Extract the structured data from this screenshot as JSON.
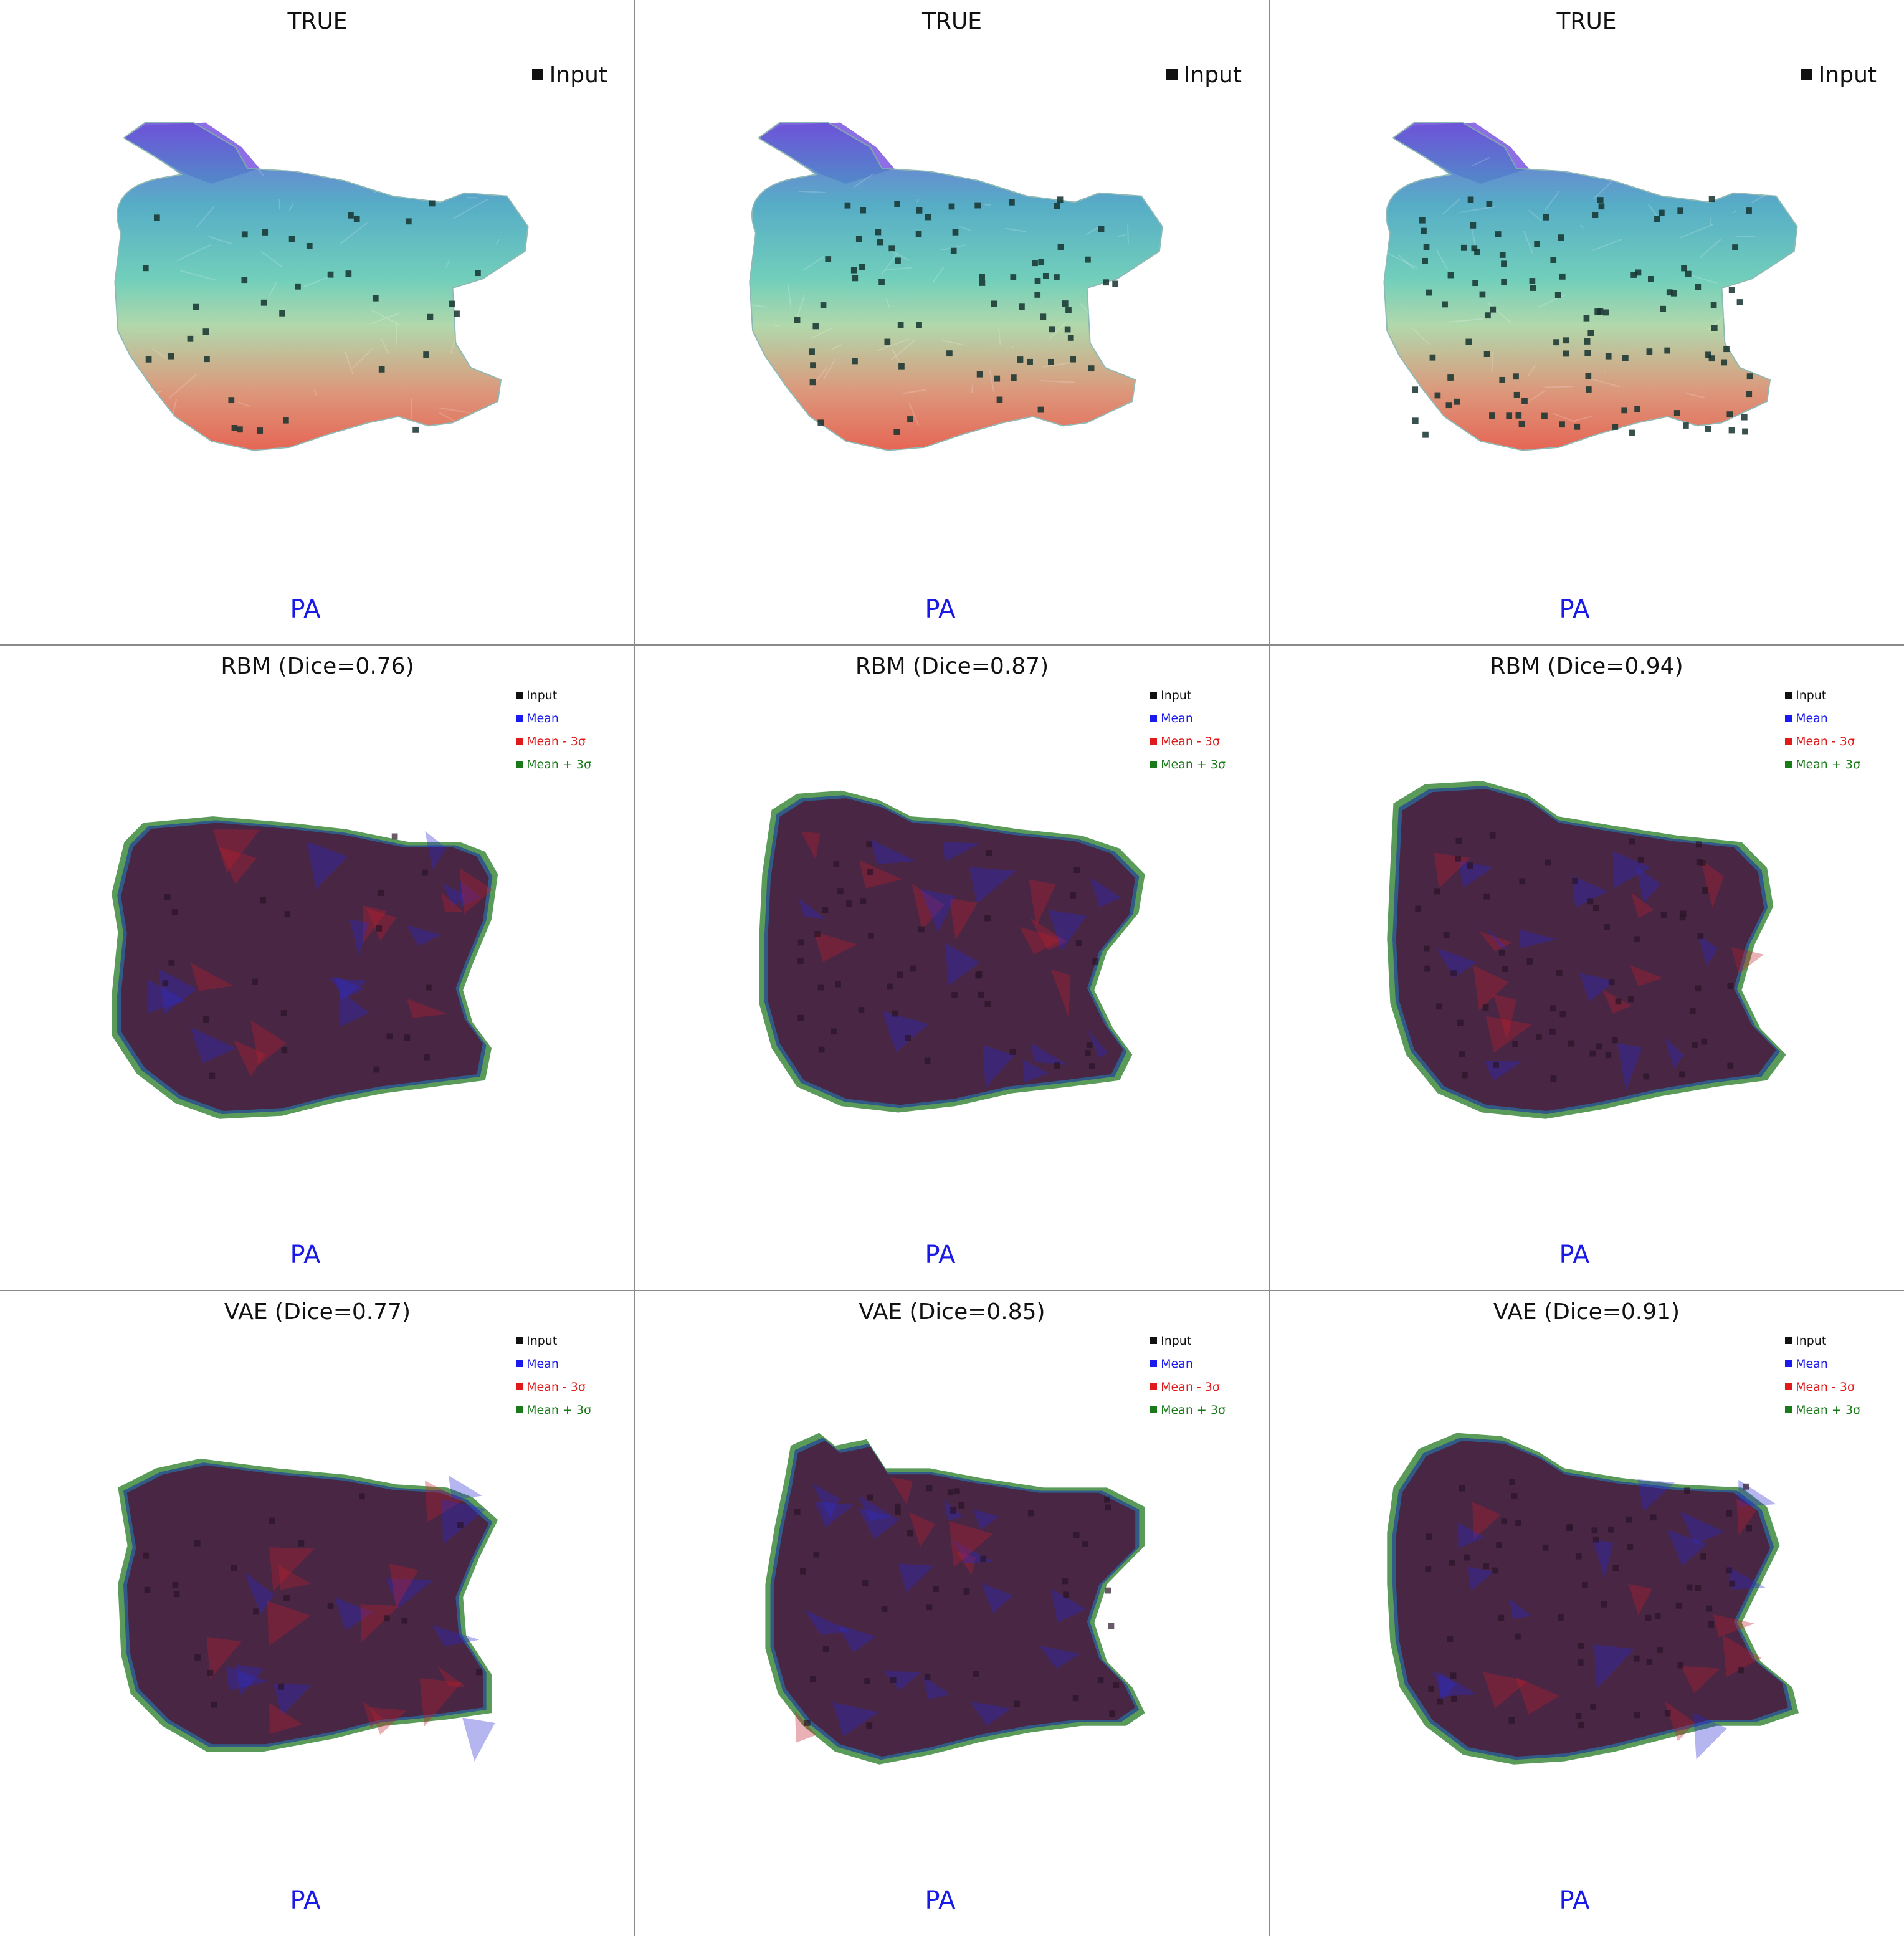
{
  "colors": {
    "input": "#111111",
    "mean": "#1a1aee",
    "minus": "#e01a1a",
    "plus": "#1a7a1a",
    "pa": "#1a1ae6",
    "divider": "#8a8a8a"
  },
  "panels": [
    {
      "title": "TRUE",
      "kind": "true",
      "legend": [
        "Input"
      ],
      "pa": "PA",
      "density": 35,
      "variant": 0
    },
    {
      "title": "TRUE",
      "kind": "true",
      "legend": [
        "Input"
      ],
      "pa": "PA",
      "density": 70,
      "variant": 1
    },
    {
      "title": "TRUE",
      "kind": "true",
      "legend": [
        "Input"
      ],
      "pa": "PA",
      "density": 105,
      "variant": 2
    },
    {
      "title": "RBM (Dice=0.76)",
      "kind": "pred",
      "legend": [
        "Input",
        "Mean",
        "Mean - 3σ",
        "Mean + 3σ"
      ],
      "pa": "PA",
      "density": 20,
      "variant": 0
    },
    {
      "title": "RBM (Dice=0.87)",
      "kind": "pred",
      "legend": [
        "Input",
        "Mean",
        "Mean - 3σ",
        "Mean + 3σ"
      ],
      "pa": "PA",
      "density": 40,
      "variant": 1
    },
    {
      "title": "RBM (Dice=0.94)",
      "kind": "pred",
      "legend": [
        "Input",
        "Mean",
        "Mean - 3σ",
        "Mean + 3σ"
      ],
      "pa": "PA",
      "density": 60,
      "variant": 2
    },
    {
      "title": "VAE (Dice=0.77)",
      "kind": "pred",
      "legend": [
        "Input",
        "Mean",
        "Mean - 3σ",
        "Mean + 3σ"
      ],
      "pa": "PA",
      "density": 20,
      "variant": 3
    },
    {
      "title": "VAE (Dice=0.85)",
      "kind": "pred",
      "legend": [
        "Input",
        "Mean",
        "Mean - 3σ",
        "Mean + 3σ"
      ],
      "pa": "PA",
      "density": 40,
      "variant": 4
    },
    {
      "title": "VAE (Dice=0.91)",
      "kind": "pred",
      "legend": [
        "Input",
        "Mean",
        "Mean - 3σ",
        "Mean + 3σ"
      ],
      "pa": "PA",
      "density": 60,
      "variant": 5
    }
  ]
}
